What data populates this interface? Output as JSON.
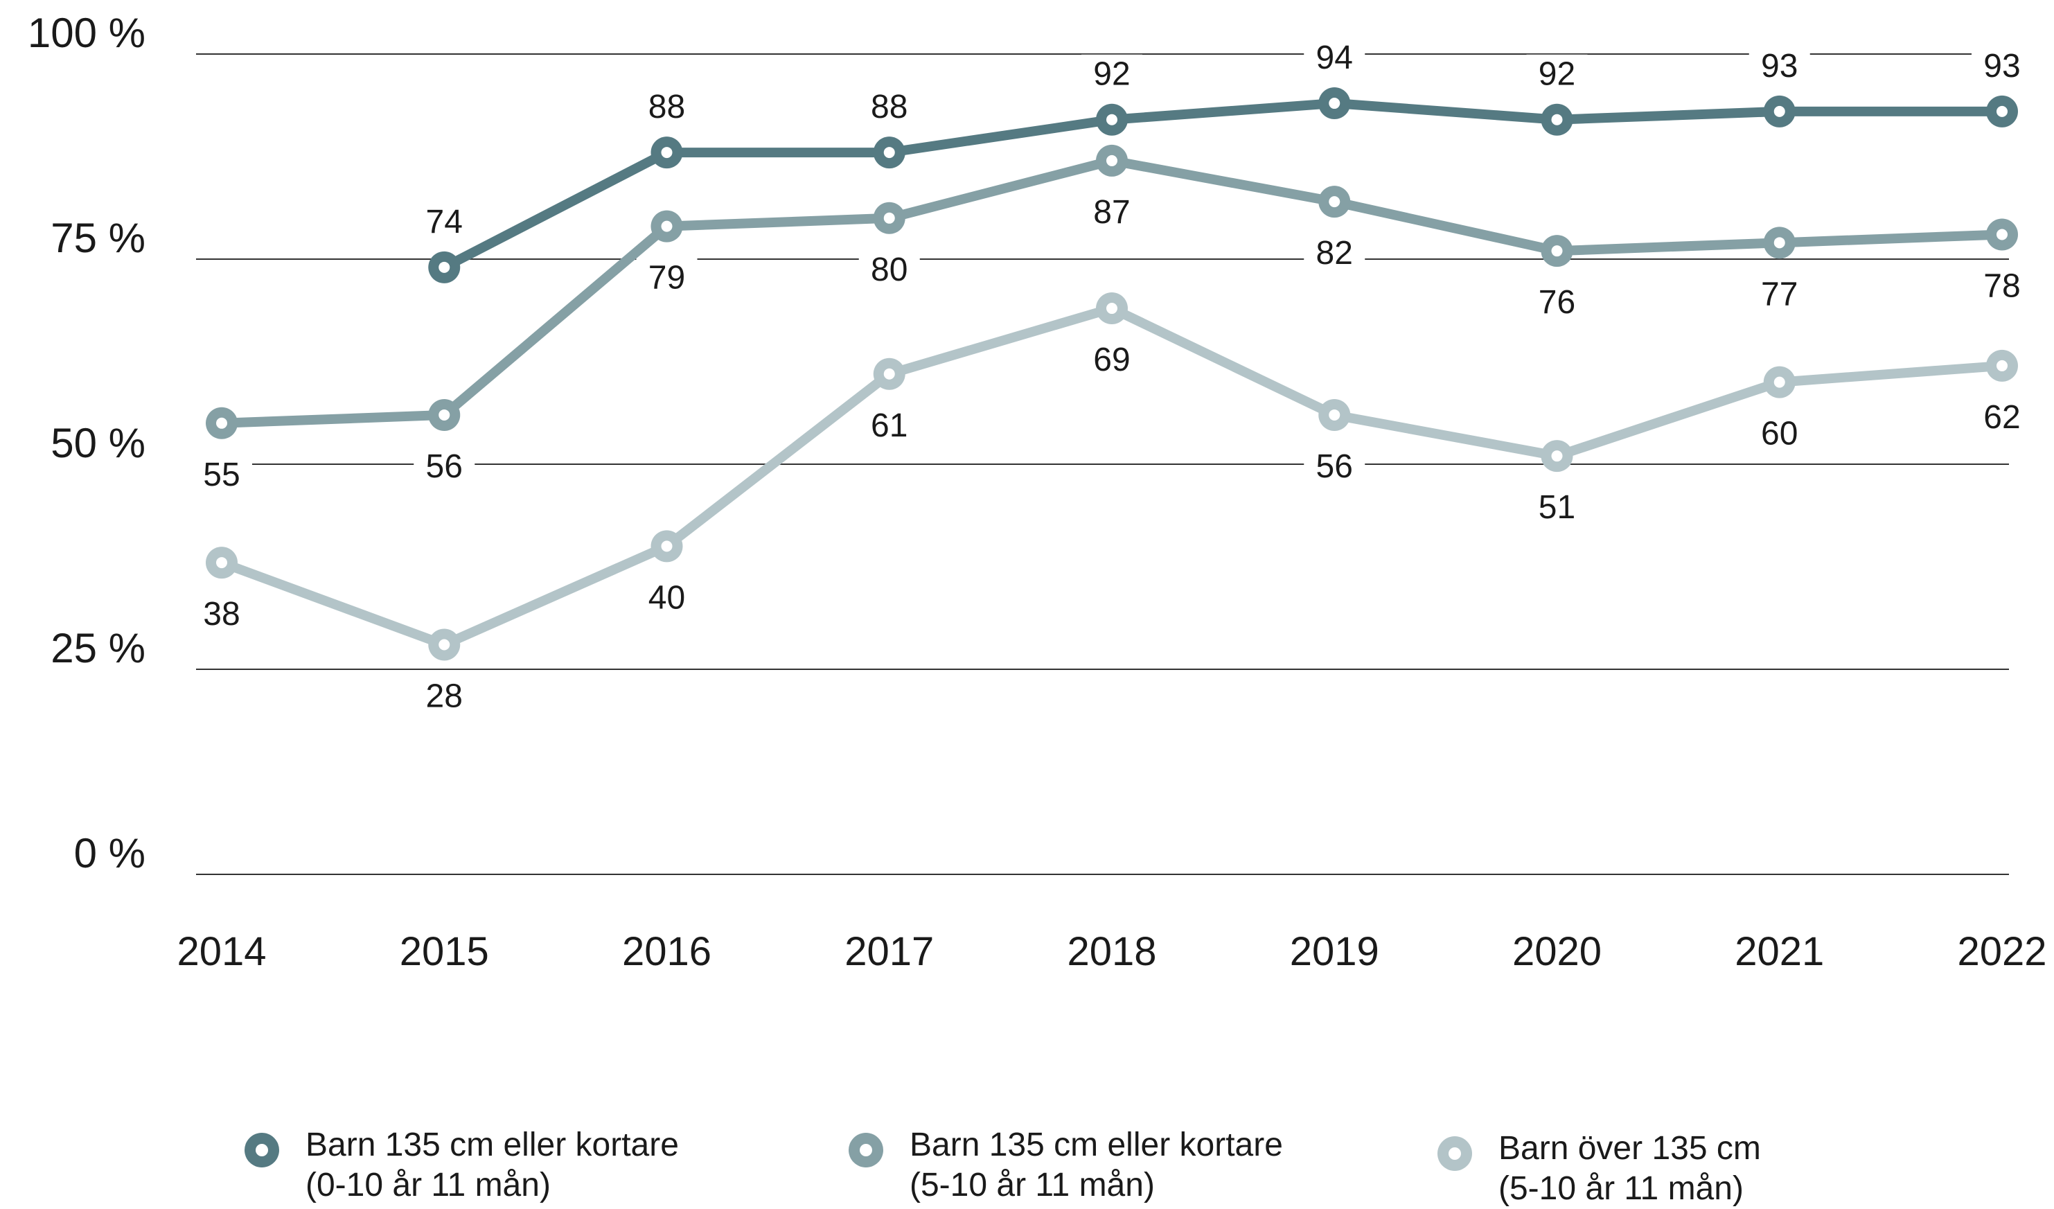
{
  "chart_data": {
    "type": "line",
    "title": "",
    "xlabel": "",
    "ylabel": "",
    "x": [
      "2014",
      "2015",
      "2016",
      "2017",
      "2018",
      "2019",
      "2020",
      "2021",
      "2022"
    ],
    "ylim": [
      0,
      100
    ],
    "yticks": [
      0,
      25,
      50,
      75,
      100
    ],
    "ytick_labels": [
      "0 %",
      "25 %",
      "50 %",
      "75 %",
      "100 %"
    ],
    "grid": "horizontal",
    "legend_position": "bottom",
    "series": [
      {
        "name_lines": [
          "Barn 135 cm eller kortare",
          "(0-10 år 11 mån)"
        ],
        "color": "#557a82",
        "values": [
          null,
          74,
          88,
          88,
          92,
          94,
          92,
          93,
          93
        ],
        "label_position": "above"
      },
      {
        "name_lines": [
          "Barn 135 cm eller kortare",
          "(5-10 år 11 mån)"
        ],
        "color": "#85a0a5",
        "values": [
          55,
          56,
          79,
          80,
          87,
          82,
          76,
          77,
          78
        ],
        "label_position": "below"
      },
      {
        "name_lines": [
          "Barn över 135 cm",
          "(5-10 år 11 mån)"
        ],
        "color": "#b3c4c8",
        "values": [
          38,
          28,
          40,
          61,
          69,
          56,
          51,
          60,
          62
        ],
        "label_position": "below"
      }
    ]
  }
}
